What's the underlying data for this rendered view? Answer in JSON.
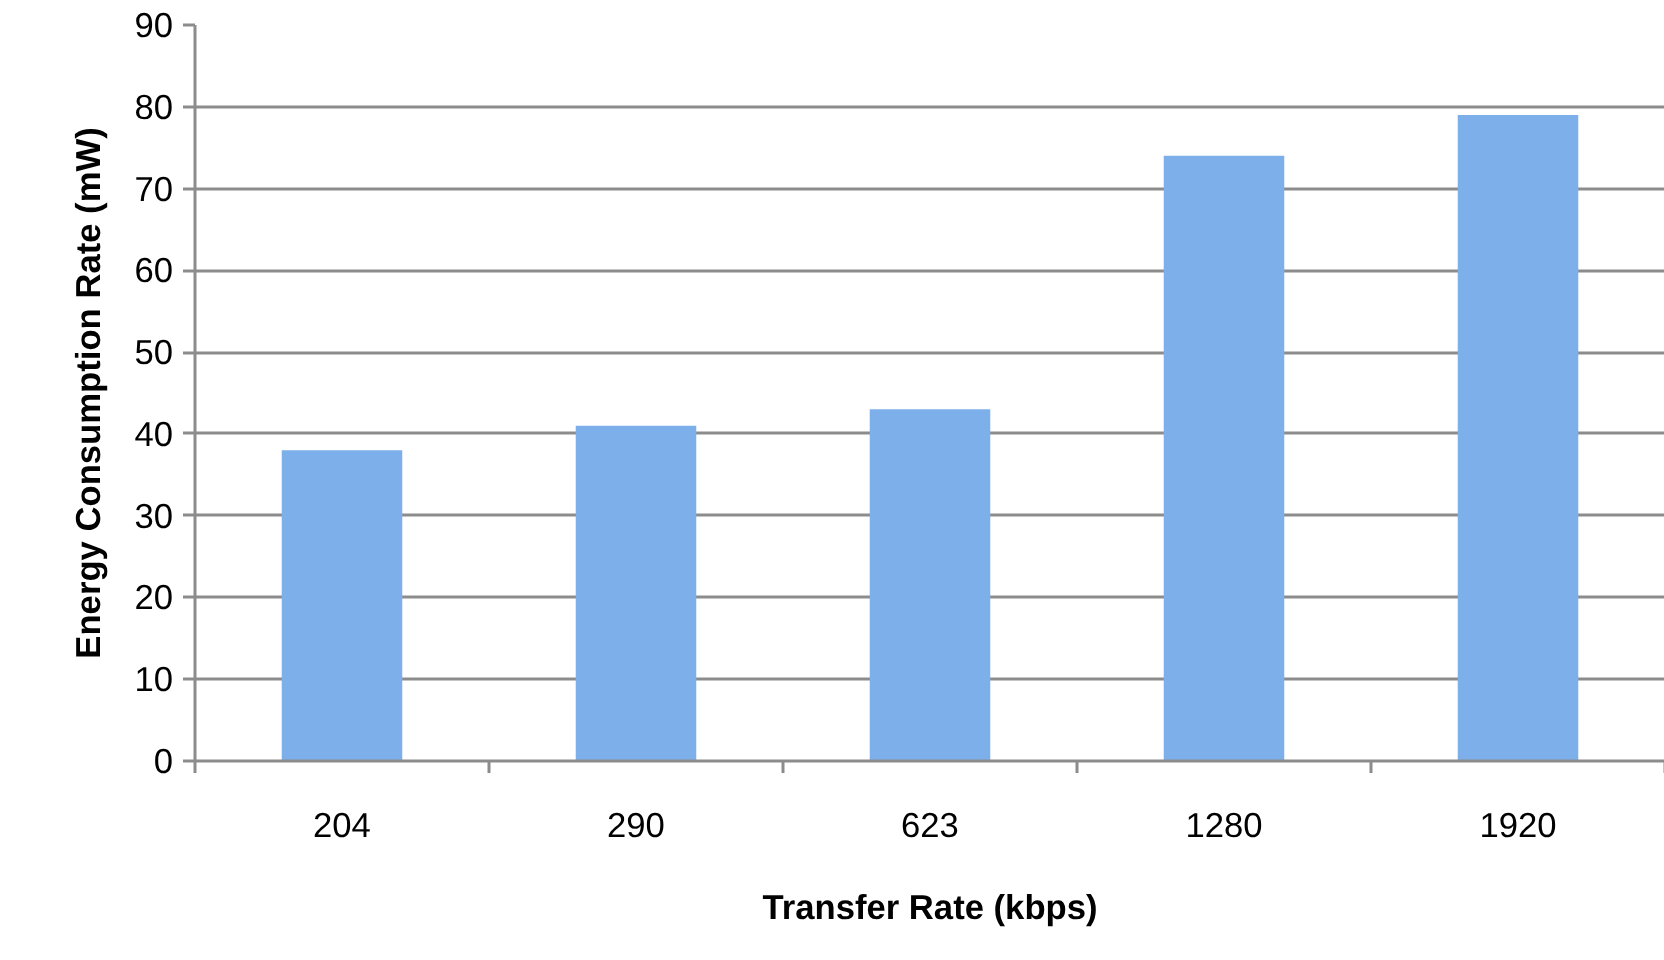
{
  "chart_data": {
    "type": "bar",
    "xlabel": "Transfer Rate (kbps)",
    "ylabel": "Energy Consumption Rate (mW)",
    "categories": [
      "204",
      "290",
      "623",
      "1280",
      "1920"
    ],
    "values": [
      38,
      41,
      43,
      74,
      79
    ],
    "color": "#7db0ea",
    "ylim": [
      0,
      90
    ],
    "yticks": [
      0,
      10,
      20,
      30,
      40,
      50,
      60,
      70,
      80,
      90
    ],
    "grid": "y"
  }
}
